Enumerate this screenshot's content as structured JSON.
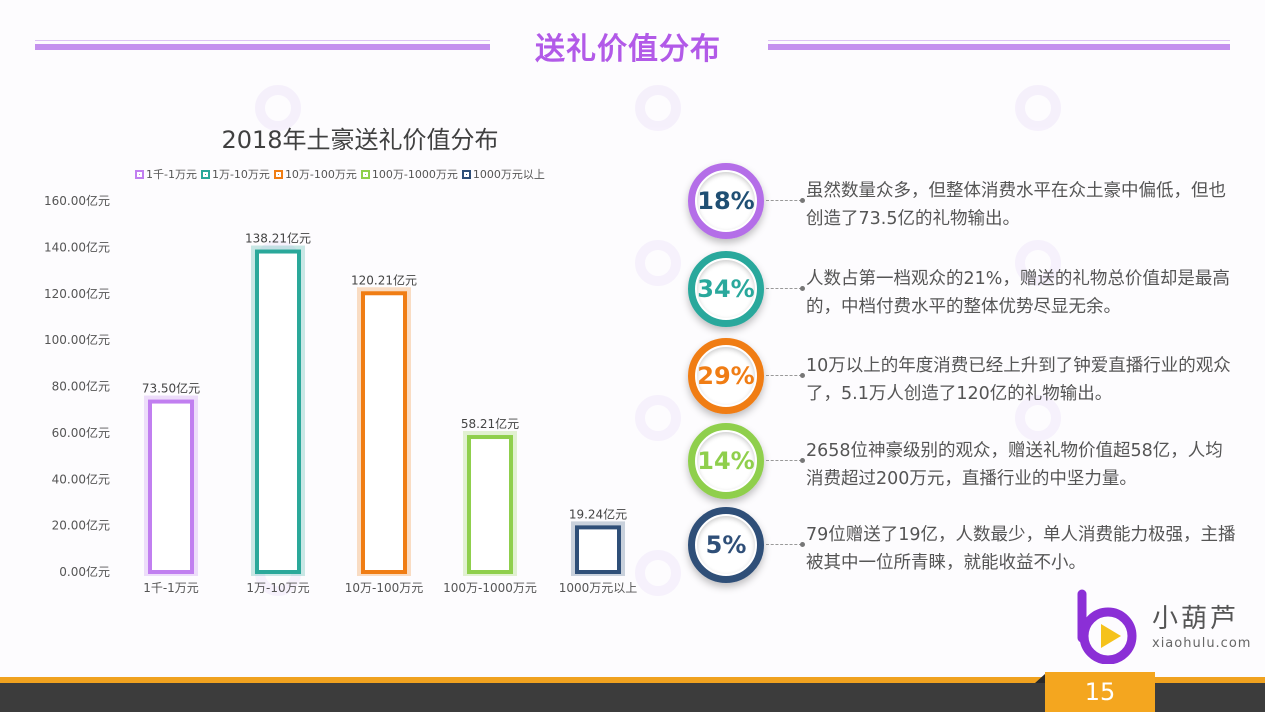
{
  "page": {
    "title": "送礼价值分布",
    "page_number": "15"
  },
  "chart_data": {
    "type": "bar",
    "title": "2018年土豪送礼价值分布",
    "categories": [
      "1千-1万元",
      "1万-10万元",
      "10万-100万元",
      "100万-1000万元",
      "1000万元以上"
    ],
    "values": [
      73.5,
      138.21,
      120.21,
      58.21,
      19.24
    ],
    "value_labels": [
      "73.50亿元",
      "138.21亿元",
      "120.21亿元",
      "58.21亿元",
      "19.24亿元"
    ],
    "colors": [
      "#c17ff0",
      "#2aa89a",
      "#f07d14",
      "#8fcf4c",
      "#2f4f78"
    ],
    "legend": [
      "1千-1万元",
      "1万-10万元",
      "10万-100万元",
      "100万-1000万元",
      "1000万元以上"
    ],
    "legend_placement": "top",
    "ylim": [
      0,
      160
    ],
    "y_ticks": [
      0,
      20,
      40,
      60,
      80,
      100,
      120,
      140,
      160
    ],
    "y_tick_labels": [
      "0.00亿元",
      "20.00亿元",
      "40.00亿元",
      "60.00亿元",
      "80.00亿元",
      "100.00亿元",
      "120.00亿元",
      "140.00亿元",
      "160.00亿元"
    ],
    "grid": false
  },
  "stats": [
    {
      "percent": "18%",
      "color": "#b46ee8",
      "text_color": "#1f4f73",
      "text": "虽然数量众多，但整体消费水平在众土豪中偏低，但也创造了73.5亿的礼物输出。"
    },
    {
      "percent": "34%",
      "color": "#29a89c",
      "text_color": "#29a89c",
      "text": "人数占第一档观众的21%，赠送的礼物总价值却是最高的，中档付费水平的整体优势尽显无余。"
    },
    {
      "percent": "29%",
      "color": "#f07d14",
      "text_color": "#f07d14",
      "text": "10万以上的年度消费已经上升到了钟爱直播行业的观众了，5.1万人创造了120亿的礼物输出。"
    },
    {
      "percent": "14%",
      "color": "#8fcf4c",
      "text_color": "#8fcf4c",
      "text": "2658位神豪级别的观众，赠送礼物价值超58亿，人均消费超过200万元，直播行业的中坚力量。"
    },
    {
      "percent": "5%",
      "color": "#2f4f78",
      "text_color": "#2f4f78",
      "text": "79位赠送了19亿，人数最少，单人消费能力极强，主播被其中一位所青睐，就能收益不小。"
    }
  ],
  "logo": {
    "name": "小葫芦",
    "url": "xiaohulu.com"
  }
}
